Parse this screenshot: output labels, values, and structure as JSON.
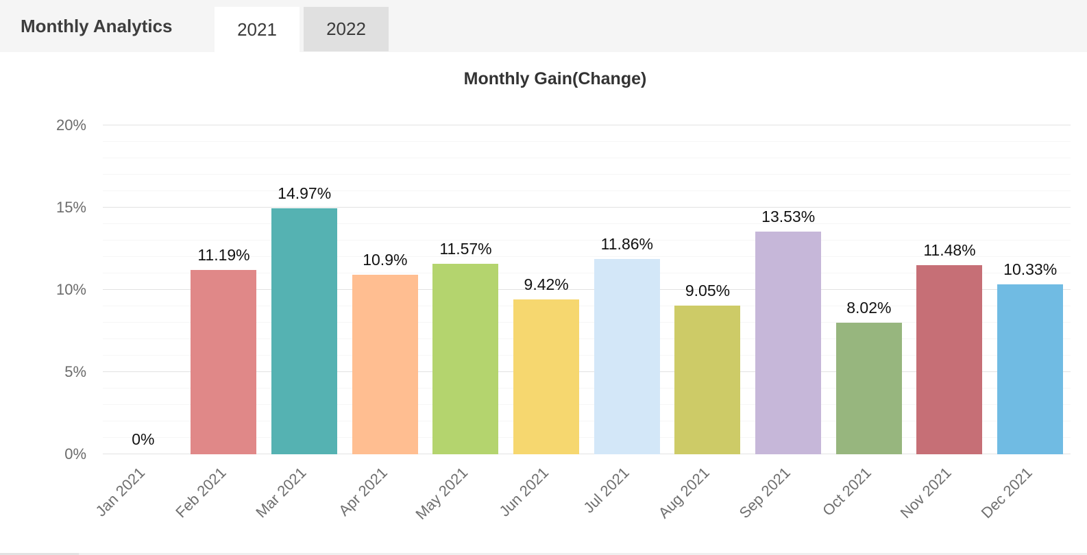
{
  "header": {
    "title": "Monthly Analytics",
    "tabs": [
      {
        "label": "2021",
        "active": true
      },
      {
        "label": "2022",
        "active": false
      }
    ]
  },
  "chart_data": {
    "type": "bar",
    "title": "Monthly Gain(Change)",
    "categories": [
      "Jan 2021",
      "Feb 2021",
      "Mar 2021",
      "Apr 2021",
      "May 2021",
      "Jun 2021",
      "Jul 2021",
      "Aug 2021",
      "Sep 2021",
      "Oct 2021",
      "Nov 2021",
      "Dec 2021"
    ],
    "values": [
      0,
      11.19,
      14.97,
      10.9,
      11.57,
      9.42,
      11.86,
      9.05,
      13.53,
      8.02,
      11.48,
      10.33
    ],
    "value_labels": [
      "0%",
      "11.19%",
      "14.97%",
      "10.9%",
      "11.57%",
      "9.42%",
      "11.86%",
      "9.05%",
      "13.53%",
      "8.02%",
      "11.48%",
      "10.33%"
    ],
    "bar_colors": [
      null,
      "#e08888",
      "#55b2b2",
      "#ffbe91",
      "#b4d46e",
      "#f6d76f",
      "#d3e7f8",
      "#cdcb67",
      "#c6b7d9",
      "#97b67e",
      "#c66f76",
      "#70bbe3"
    ],
    "xlabel": "",
    "ylabel": "",
    "ylim": [
      0,
      20
    ],
    "y_tick_labels": [
      "0%",
      "5%",
      "10%",
      "15%",
      "20%"
    ],
    "y_major_step": 5,
    "y_minor_step": 1,
    "grid": true,
    "legend": false,
    "grid_major_color": "#e2e2e2",
    "grid_minor_color": "#f6f6f6"
  }
}
